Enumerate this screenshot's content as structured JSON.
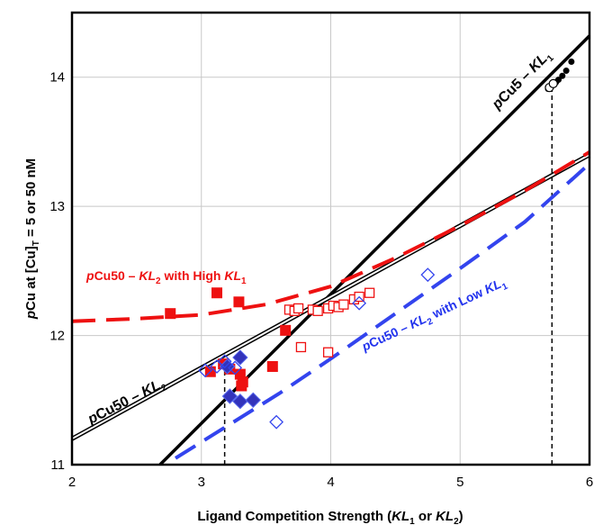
{
  "chart_data": {
    "type": "scatter",
    "xlabel": "Ligand Competition Strength (KL1 or KL2)",
    "ylabel": "pCu at [Cu]T = 5 or 50 nM",
    "xlim": [
      2,
      6
    ],
    "ylim": [
      11,
      14.5
    ],
    "x_ticks": [
      "2",
      "3",
      "4",
      "5",
      "6"
    ],
    "y_ticks": [
      "11",
      "12",
      "13",
      "14"
    ],
    "grid": true,
    "legend": "none",
    "annotations": {
      "pcu5": "pCu5 – KL1",
      "pcu50_kl2": "pCu50 – KL2",
      "pcu50_high": "pCu50 – KL2 with High KL1",
      "pcu50_low": "pCu50 – KL2 with Low KL1"
    },
    "lines": [
      {
        "id": "pcu5-line",
        "style": "thick-solid",
        "color": "#000000",
        "points": [
          [
            2.68,
            11.0
          ],
          [
            6.0,
            14.32
          ]
        ]
      },
      {
        "id": "pcu50-double-line",
        "style": "double-solid",
        "color": "#000000",
        "points": [
          [
            2.0,
            11.2
          ],
          [
            6.0,
            13.4
          ]
        ]
      },
      {
        "id": "high-kl1-curve",
        "style": "dashed",
        "color": "#ee1111",
        "points": [
          [
            2.0,
            12.11
          ],
          [
            2.5,
            12.13
          ],
          [
            3.0,
            12.16
          ],
          [
            3.5,
            12.24
          ],
          [
            4.0,
            12.38
          ],
          [
            4.5,
            12.6
          ],
          [
            5.0,
            12.85
          ],
          [
            5.5,
            13.12
          ],
          [
            6.0,
            13.42
          ]
        ]
      },
      {
        "id": "low-kl1-curve",
        "style": "dashed",
        "color": "#3344ee",
        "points": [
          [
            2.8,
            11.05
          ],
          [
            3.2,
            11.3
          ],
          [
            3.6,
            11.55
          ],
          [
            4.0,
            11.82
          ],
          [
            4.5,
            12.17
          ],
          [
            5.0,
            12.52
          ],
          [
            5.5,
            12.88
          ],
          [
            6.0,
            13.33
          ]
        ]
      }
    ],
    "reference_lines": [
      {
        "x": 3.18,
        "y_from": 11.0,
        "y_to": 11.75,
        "style": "dashed"
      },
      {
        "x": 5.71,
        "y_from": 11.0,
        "y_to": 13.9,
        "style": "dashed"
      }
    ],
    "series": [
      {
        "marker": "square-filled",
        "color": "#ee1111",
        "x": [
          2.76,
          3.12,
          3.29,
          3.07,
          3.17,
          3.22,
          3.3,
          3.32,
          3.31,
          3.55,
          3.65
        ],
        "y": [
          12.17,
          12.33,
          12.26,
          11.72,
          11.78,
          11.74,
          11.7,
          11.64,
          11.61,
          11.76,
          12.04
        ]
      },
      {
        "marker": "square-open",
        "color": "#ee1111",
        "x": [
          3.68,
          3.72,
          3.75,
          3.86,
          3.9,
          3.98,
          4.02,
          4.06,
          4.1,
          4.18,
          4.22,
          4.3,
          3.77,
          3.98
        ],
        "y": [
          12.2,
          12.19,
          12.21,
          12.2,
          12.19,
          12.21,
          12.23,
          12.22,
          12.24,
          12.28,
          12.3,
          12.33,
          11.91,
          11.87
        ]
      },
      {
        "marker": "diamond-filled",
        "color": "#3333bb",
        "x": [
          3.2,
          3.3,
          3.22,
          3.3,
          3.4
        ],
        "y": [
          11.76,
          11.83,
          11.53,
          11.49,
          11.5
        ]
      },
      {
        "marker": "diamond-open",
        "color": "#3344ee",
        "x": [
          3.03,
          3.12,
          3.18,
          3.26,
          3.58,
          4.22,
          4.75
        ],
        "y": [
          11.73,
          11.76,
          11.8,
          11.75,
          11.33,
          12.25,
          12.47
        ]
      },
      {
        "marker": "circle-filled",
        "color": "#000000",
        "x": [
          5.68,
          5.7,
          5.72,
          5.74,
          5.76,
          5.79,
          5.82,
          5.86
        ],
        "y": [
          13.91,
          13.92,
          13.94,
          13.96,
          13.98,
          14.01,
          14.05,
          14.12
        ]
      },
      {
        "marker": "circle-open",
        "color": "#000000",
        "x": [
          5.69,
          5.72
        ],
        "y": [
          13.92,
          13.95
        ]
      }
    ]
  }
}
